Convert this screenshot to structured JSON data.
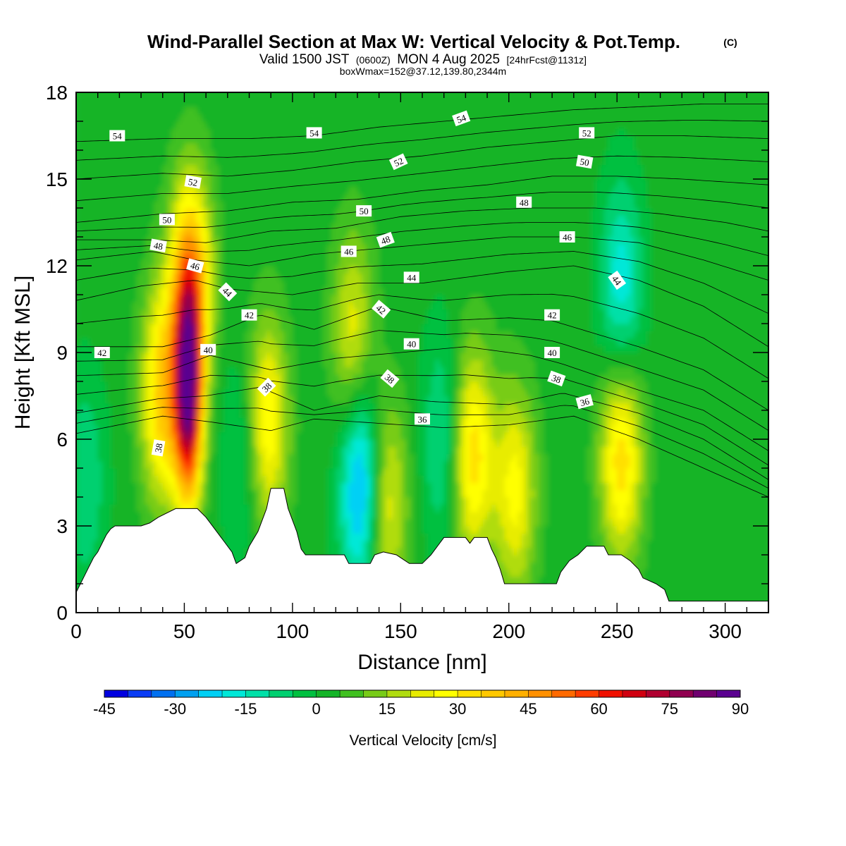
{
  "chart_data": {
    "type": "heatmap",
    "title": "Wind-Parallel Section at Max W: Vertical Velocity & Pot.Temp.",
    "title_mark": "(C)",
    "subtitle_parts": [
      "Valid 1500 JST",
      "(0600Z)",
      "MON 4 Aug 2025",
      "[24hrFcst@1131z]"
    ],
    "info_line": "boxWmax=152@37.12,139.80,2344m",
    "xlabel": "Distance [nm]",
    "ylabel": "Height [Kft MSL]",
    "xlim": [
      0,
      320
    ],
    "ylim": [
      0,
      18
    ],
    "xticks": [
      0,
      50,
      100,
      150,
      200,
      250,
      300
    ],
    "yticks": [
      0,
      3,
      6,
      9,
      12,
      15,
      18
    ],
    "colorbar": {
      "title": "Vertical Velocity [cm/s]",
      "min": -45,
      "max": 90,
      "step": 5,
      "tick_labels": [
        "-45",
        "-30",
        "-15",
        "0",
        "15",
        "30",
        "45",
        "60",
        "75",
        "90"
      ],
      "colors": [
        "#0000e0",
        "#0a3cf5",
        "#0070f0",
        "#00a0f0",
        "#00d0f5",
        "#00e8d8",
        "#00e0a8",
        "#00d070",
        "#00c040",
        "#14b428",
        "#40c020",
        "#78cc18",
        "#b0dc10",
        "#e8ec00",
        "#ffff00",
        "#ffe000",
        "#ffc800",
        "#ffb000",
        "#ff9000",
        "#ff6a00",
        "#ff3c00",
        "#f01000",
        "#d00010",
        "#b00030",
        "#900050",
        "#700070",
        "#5a0090"
      ]
    },
    "field_peaks": [
      {
        "x": 40,
        "z": 7.5,
        "w": 35
      },
      {
        "x": 52,
        "z": 7.5,
        "w": 75
      },
      {
        "x": 53,
        "z": 11.5,
        "w": 40
      },
      {
        "x": 88,
        "z": 6.5,
        "w": 30
      },
      {
        "x": 128,
        "z": 9.5,
        "w": 22
      },
      {
        "x": 143,
        "z": 3.8,
        "w": 25
      },
      {
        "x": 183,
        "z": 5.5,
        "w": 32
      },
      {
        "x": 203,
        "z": 4.2,
        "w": 25
      },
      {
        "x": 252,
        "z": 5.5,
        "w": 33
      },
      {
        "x": 132,
        "z": 4.5,
        "w": -35
      },
      {
        "x": 170,
        "z": 6.0,
        "w": -15
      },
      {
        "x": 252,
        "z": 11.0,
        "w": -22
      },
      {
        "x": 78,
        "z": 5.5,
        "w": -12
      },
      {
        "x": 4,
        "z": 4.5,
        "w": -12
      }
    ],
    "terrain": [
      [
        0,
        0.7
      ],
      [
        2,
        1.0
      ],
      [
        4,
        1.3
      ],
      [
        6,
        1.6
      ],
      [
        8,
        1.9
      ],
      [
        10,
        2.1
      ],
      [
        12,
        2.4
      ],
      [
        14,
        2.7
      ],
      [
        16,
        2.9
      ],
      [
        18,
        3.0
      ],
      [
        30,
        3.0
      ],
      [
        34,
        3.1
      ],
      [
        38,
        3.3
      ],
      [
        46,
        3.6
      ],
      [
        56,
        3.6
      ],
      [
        60,
        3.3
      ],
      [
        64,
        2.9
      ],
      [
        68,
        2.5
      ],
      [
        72,
        2.1
      ],
      [
        74,
        1.7
      ],
      [
        78,
        1.9
      ],
      [
        80,
        2.3
      ],
      [
        84,
        2.8
      ],
      [
        88,
        3.6
      ],
      [
        90,
        4.3
      ],
      [
        96,
        4.3
      ],
      [
        98,
        3.6
      ],
      [
        102,
        2.8
      ],
      [
        104,
        2.2
      ],
      [
        106,
        2.0
      ],
      [
        124,
        2.0
      ],
      [
        126,
        1.7
      ],
      [
        136,
        1.7
      ],
      [
        138,
        2.0
      ],
      [
        142,
        2.1
      ],
      [
        148,
        2.0
      ],
      [
        150,
        1.9
      ],
      [
        154,
        1.7
      ],
      [
        160,
        1.7
      ],
      [
        164,
        2.0
      ],
      [
        168,
        2.4
      ],
      [
        170,
        2.6
      ],
      [
        180,
        2.6
      ],
      [
        182,
        2.4
      ],
      [
        184,
        2.6
      ],
      [
        190,
        2.6
      ],
      [
        192,
        2.2
      ],
      [
        194,
        1.9
      ],
      [
        196,
        1.5
      ],
      [
        198,
        1.0
      ],
      [
        206,
        1.0
      ],
      [
        210,
        1.0
      ],
      [
        222,
        1.0
      ],
      [
        224,
        1.4
      ],
      [
        228,
        1.8
      ],
      [
        232,
        2.0
      ],
      [
        236,
        2.3
      ],
      [
        244,
        2.3
      ],
      [
        246,
        2.0
      ],
      [
        252,
        2.0
      ],
      [
        256,
        1.8
      ],
      [
        260,
        1.5
      ],
      [
        262,
        1.2
      ],
      [
        268,
        1.0
      ],
      [
        272,
        0.8
      ],
      [
        274,
        0.4
      ],
      [
        290,
        0.4
      ],
      [
        320,
        0.4
      ]
    ],
    "theta_contours": [
      {
        "value": 36,
        "points": [
          [
            0,
            6.2
          ],
          [
            40,
            6.8
          ],
          [
            62,
            6.6
          ],
          [
            90,
            6.3
          ],
          [
            110,
            6.7
          ],
          [
            150,
            6.5
          ],
          [
            170,
            6.4
          ],
          [
            200,
            6.5
          ],
          [
            230,
            6.8
          ],
          [
            260,
            6.0
          ],
          [
            290,
            5.0
          ],
          [
            320,
            4.0
          ]
        ]
      },
      {
        "value": 38,
        "points": [
          [
            0,
            6.9
          ],
          [
            38,
            7.4
          ],
          [
            60,
            7.5
          ],
          [
            85,
            7.8
          ],
          [
            110,
            7.0
          ],
          [
            140,
            7.5
          ],
          [
            165,
            7.3
          ],
          [
            200,
            7.2
          ],
          [
            225,
            7.6
          ],
          [
            260,
            6.9
          ],
          [
            290,
            6.0
          ],
          [
            320,
            4.6
          ]
        ]
      },
      {
        "value": 40,
        "points": [
          [
            0,
            8.2
          ],
          [
            40,
            8.3
          ],
          [
            62,
            8.9
          ],
          [
            90,
            8.4
          ],
          [
            120,
            8.8
          ],
          [
            150,
            9.0
          ],
          [
            180,
            9.2
          ],
          [
            210,
            8.9
          ],
          [
            225,
            8.6
          ],
          [
            260,
            7.7
          ],
          [
            290,
            7.0
          ],
          [
            320,
            5.6
          ]
        ]
      },
      {
        "value": 42,
        "points": [
          [
            0,
            9.2
          ],
          [
            40,
            9.2
          ],
          [
            62,
            9.6
          ],
          [
            85,
            10.3
          ],
          [
            110,
            9.8
          ],
          [
            140,
            10.6
          ],
          [
            170,
            10.1
          ],
          [
            200,
            10.2
          ],
          [
            220,
            10.1
          ],
          [
            260,
            9.2
          ],
          [
            290,
            8.4
          ],
          [
            320,
            7.0
          ]
        ]
      },
      {
        "value": 44,
        "points": [
          [
            0,
            10.8
          ],
          [
            30,
            11.3
          ],
          [
            55,
            11.5
          ],
          [
            70,
            11.2
          ],
          [
            100,
            11.0
          ],
          [
            130,
            11.4
          ],
          [
            160,
            11.4
          ],
          [
            200,
            11.8
          ],
          [
            230,
            12.0
          ],
          [
            260,
            11.5
          ],
          [
            290,
            10.6
          ],
          [
            320,
            9.2
          ]
        ]
      },
      {
        "value": 46,
        "points": [
          [
            0,
            12.2
          ],
          [
            35,
            12.5
          ],
          [
            55,
            12.2
          ],
          [
            80,
            12.0
          ],
          [
            110,
            12.4
          ],
          [
            140,
            12.6
          ],
          [
            170,
            12.8
          ],
          [
            200,
            13.0
          ],
          [
            230,
            13.0
          ],
          [
            260,
            12.8
          ],
          [
            290,
            12.2
          ],
          [
            320,
            11.5
          ]
        ]
      },
      {
        "value": 48,
        "points": [
          [
            0,
            12.9
          ],
          [
            35,
            12.9
          ],
          [
            60,
            12.8
          ],
          [
            90,
            13.2
          ],
          [
            120,
            13.3
          ],
          [
            150,
            13.7
          ],
          [
            180,
            13.9
          ],
          [
            210,
            14.0
          ],
          [
            240,
            14.0
          ],
          [
            270,
            13.8
          ],
          [
            300,
            13.5
          ],
          [
            320,
            13.2
          ]
        ]
      },
      {
        "value": 50,
        "points": [
          [
            0,
            13.5
          ],
          [
            40,
            13.8
          ],
          [
            70,
            13.9
          ],
          [
            100,
            14.2
          ],
          [
            130,
            14.3
          ],
          [
            160,
            14.6
          ],
          [
            190,
            14.8
          ],
          [
            220,
            15.1
          ],
          [
            250,
            15.1
          ],
          [
            280,
            15.0
          ],
          [
            320,
            14.8
          ]
        ]
      },
      {
        "value": 52,
        "points": [
          [
            0,
            15.0
          ],
          [
            40,
            15.2
          ],
          [
            70,
            15.1
          ],
          [
            100,
            15.3
          ],
          [
            130,
            15.6
          ],
          [
            160,
            15.8
          ],
          [
            190,
            16.1
          ],
          [
            220,
            16.3
          ],
          [
            250,
            16.5
          ],
          [
            280,
            16.5
          ],
          [
            320,
            16.4
          ]
        ]
      },
      {
        "value": 54,
        "points": [
          [
            0,
            16.3
          ],
          [
            40,
            16.4
          ],
          [
            80,
            16.4
          ],
          [
            110,
            16.5
          ],
          [
            140,
            16.8
          ],
          [
            170,
            17.0
          ],
          [
            200,
            17.2
          ],
          [
            230,
            17.4
          ],
          [
            260,
            17.5
          ],
          [
            290,
            17.6
          ],
          [
            320,
            17.6
          ]
        ]
      }
    ],
    "contour_labels": [
      {
        "text": "54",
        "x": 19,
        "z": 16.5,
        "rot": 0
      },
      {
        "text": "54",
        "x": 110,
        "z": 16.6,
        "rot": 0
      },
      {
        "text": "54",
        "x": 178,
        "z": 17.1,
        "rot": -20
      },
      {
        "text": "52",
        "x": 236,
        "z": 16.6,
        "rot": 0
      },
      {
        "text": "52",
        "x": 54,
        "z": 14.9,
        "rot": 10
      },
      {
        "text": "52",
        "x": 149,
        "z": 15.6,
        "rot": -25
      },
      {
        "text": "50",
        "x": 235,
        "z": 15.6,
        "rot": 10
      },
      {
        "text": "50",
        "x": 42,
        "z": 13.6,
        "rot": 0
      },
      {
        "text": "50",
        "x": 133,
        "z": 13.9,
        "rot": 0
      },
      {
        "text": "48",
        "x": 207,
        "z": 14.2,
        "rot": 0
      },
      {
        "text": "48",
        "x": 38,
        "z": 12.7,
        "rot": 10
      },
      {
        "text": "48",
        "x": 143,
        "z": 12.9,
        "rot": -20
      },
      {
        "text": "46",
        "x": 227,
        "z": 13.0,
        "rot": 0
      },
      {
        "text": "46",
        "x": 126,
        "z": 12.5,
        "rot": 0
      },
      {
        "text": "46",
        "x": 55,
        "z": 12.0,
        "rot": 15
      },
      {
        "text": "44",
        "x": 70,
        "z": 11.1,
        "rot": 45
      },
      {
        "text": "44",
        "x": 155,
        "z": 11.6,
        "rot": 0
      },
      {
        "text": "44",
        "x": 250,
        "z": 11.5,
        "rot": 55
      },
      {
        "text": "42",
        "x": 80,
        "z": 10.3,
        "rot": 0
      },
      {
        "text": "42",
        "x": 141,
        "z": 10.5,
        "rot": 40
      },
      {
        "text": "42",
        "x": 220,
        "z": 10.3,
        "rot": 0
      },
      {
        "text": "42",
        "x": 12,
        "z": 9.0,
        "rot": 0
      },
      {
        "text": "40",
        "x": 61,
        "z": 9.1,
        "rot": 0
      },
      {
        "text": "40",
        "x": 155,
        "z": 9.3,
        "rot": 0
      },
      {
        "text": "40",
        "x": 220,
        "z": 9.0,
        "rot": 0
      },
      {
        "text": "38",
        "x": 145,
        "z": 8.1,
        "rot": 40
      },
      {
        "text": "38",
        "x": 222,
        "z": 8.1,
        "rot": 20
      },
      {
        "text": "38",
        "x": 88,
        "z": 7.8,
        "rot": -45
      },
      {
        "text": "38",
        "x": 38,
        "z": 5.7,
        "rot": -80
      },
      {
        "text": "36",
        "x": 160,
        "z": 6.7,
        "rot": 0
      },
      {
        "text": "36",
        "x": 235,
        "z": 7.3,
        "rot": -15
      }
    ]
  }
}
